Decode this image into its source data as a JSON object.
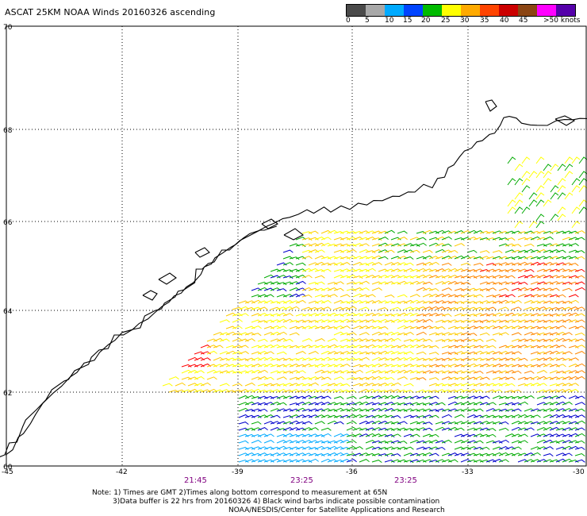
{
  "title": "ASCAT 25KM NOAA Winds 20160326 ascending",
  "colorbar": {
    "labels": [
      "0",
      "5",
      "10",
      "15",
      "20",
      "25",
      "30",
      "35",
      "40",
      "45",
      ">50 knots"
    ],
    "colors": [
      "#4a4a4a",
      "#a8a8a8",
      "#00aaff",
      "#0044ff",
      "#00bb00",
      "#ffff00",
      "#ffaa00",
      "#ff4400",
      "#cc0000",
      "#8b4513",
      "#ff00ff",
      "#5500aa"
    ]
  },
  "map": {
    "lat_labels": [
      "70",
      "68",
      "66",
      "64",
      "62",
      "60"
    ],
    "lon_labels": [
      "-45",
      "-42",
      "-39",
      "-36",
      "-33",
      "-30"
    ],
    "pass_times": [
      "21:45",
      "23:25",
      "23:25"
    ],
    "barb_colors": {
      "calm": "#000000",
      "light": "#00aaff",
      "blue": "#0000cc",
      "green": "#00aa00",
      "yellow": "#ffff00",
      "gold": "#ffcc00",
      "orange": "#ff8800",
      "red": "#ff0000",
      "darkred": "#cc0033"
    }
  },
  "notes": {
    "line1": "Note: 1) Times are GMT 2)Times along bottom correspond to measurement at 65N",
    "line2": "3)Data buffer is 22 hrs from 20160326 4) Black wind barbs indicate possible contamination",
    "line3": "NOAA/NESDIS/Center for Satellite Applications and Research"
  }
}
